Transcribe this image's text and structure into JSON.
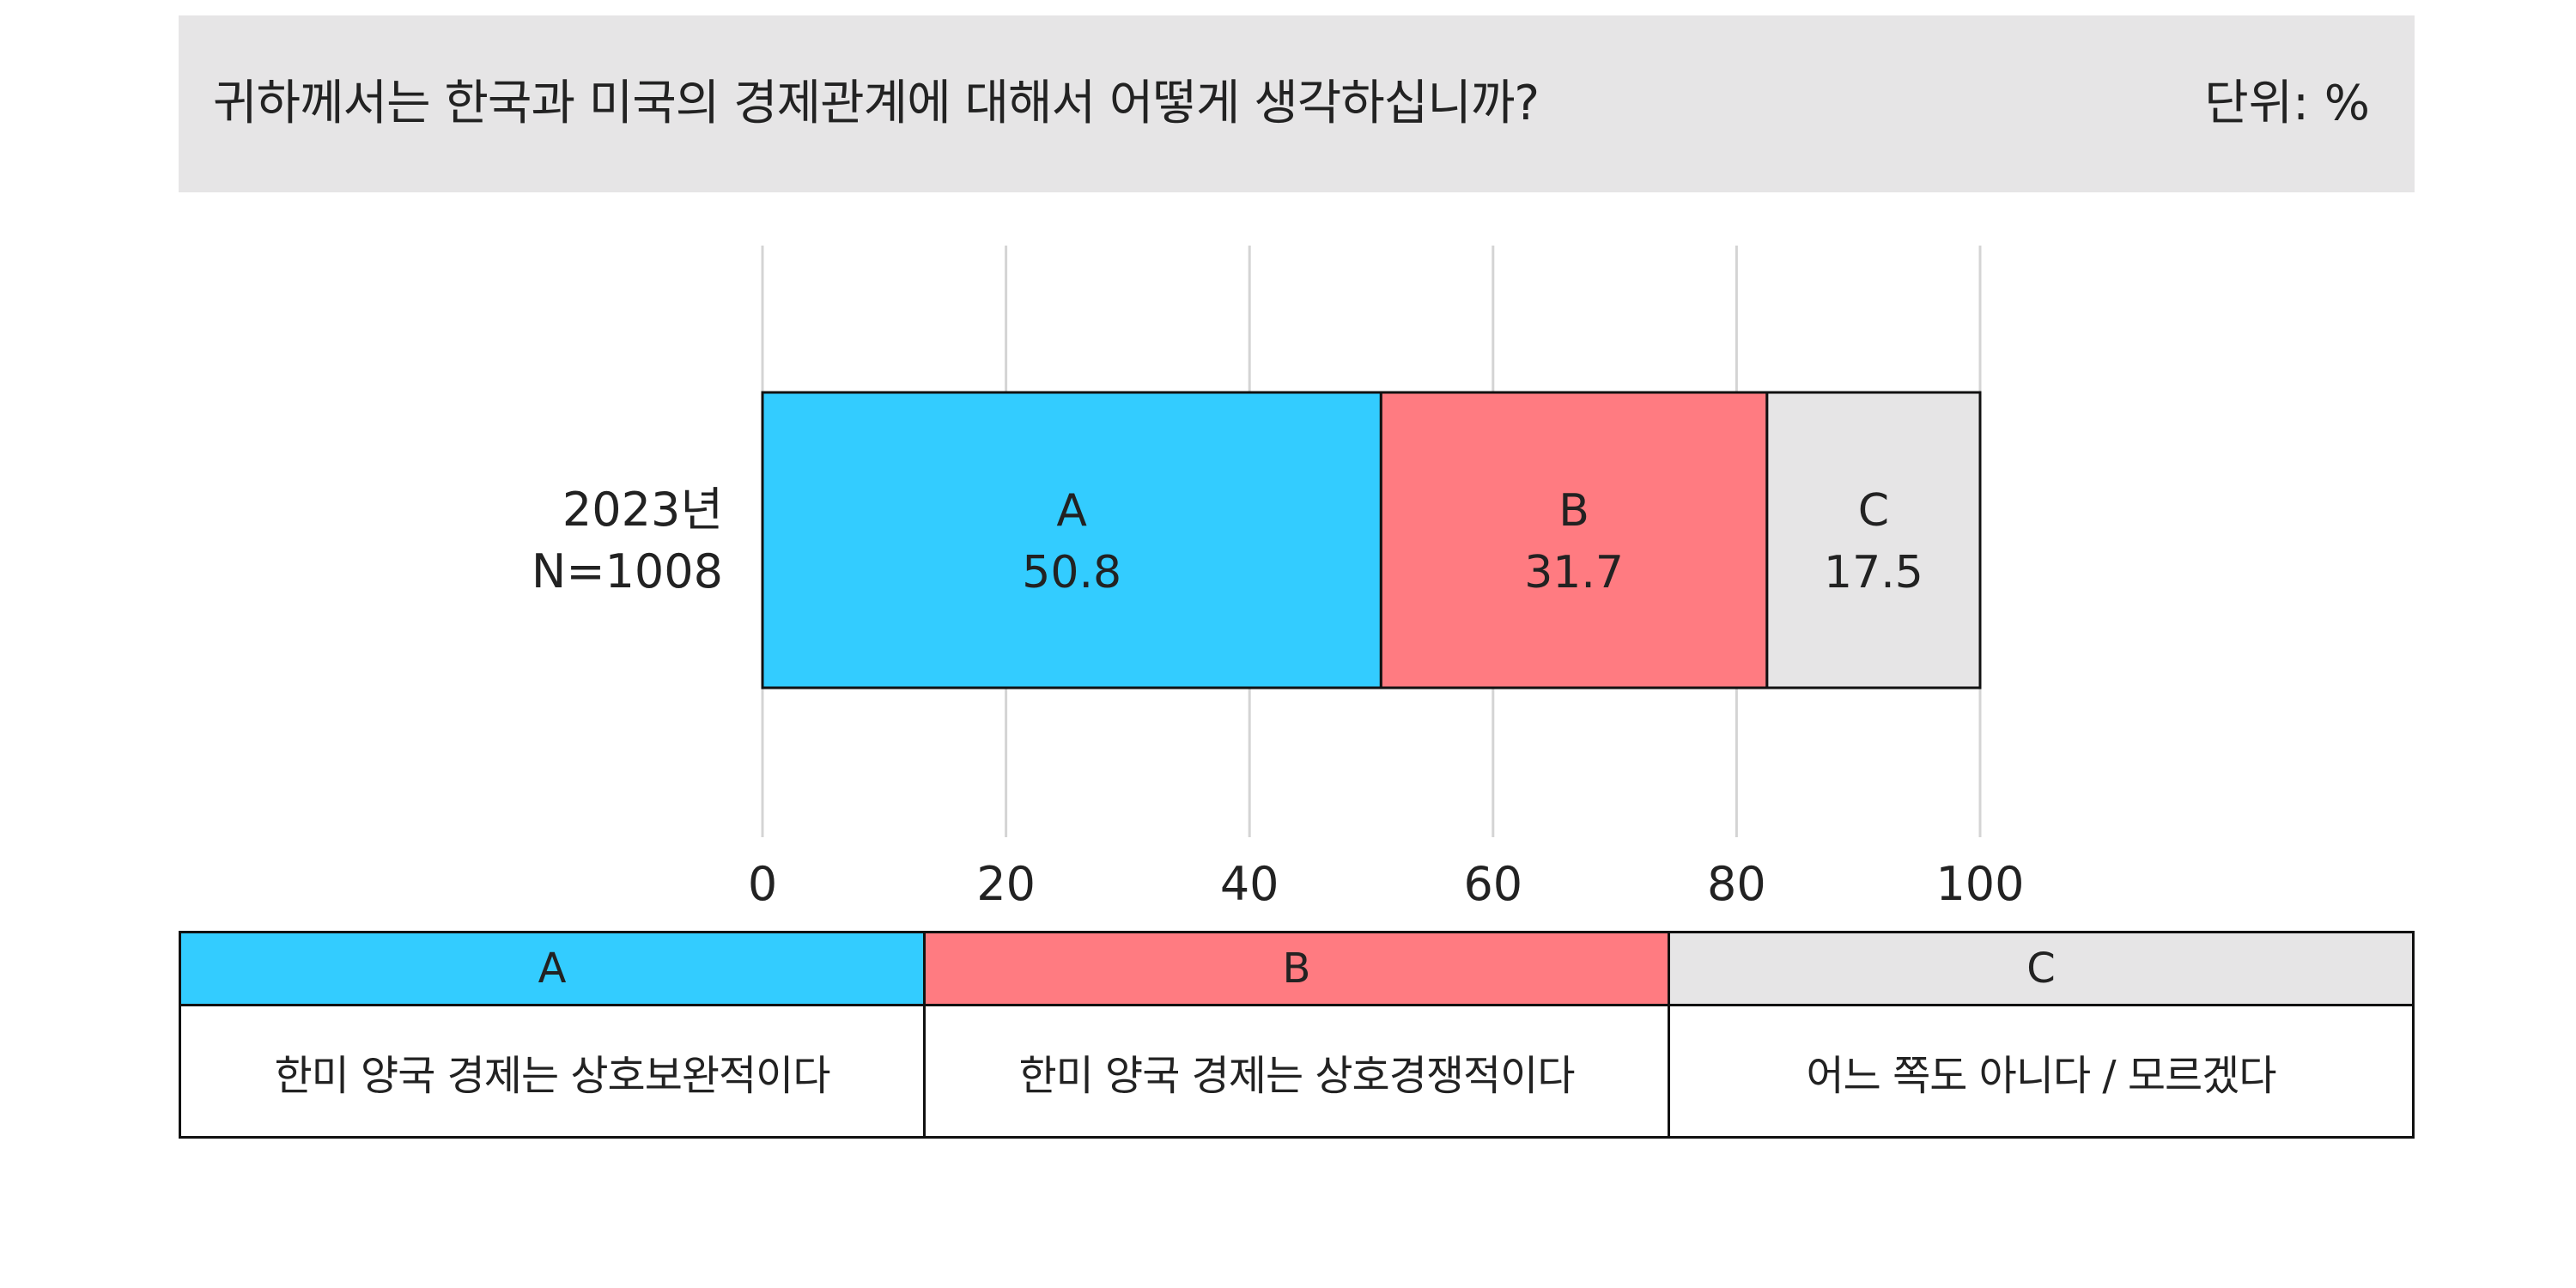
{
  "header": {
    "question": "귀하께서는 한국과 미국의 경제관계에 대해서 어떻게 생각하십니까?",
    "unit": "단위: %"
  },
  "chart_data": {
    "type": "bar",
    "orientation": "horizontal",
    "stacked": true,
    "categories": [
      "2023년 N=1008"
    ],
    "category_lines": [
      [
        "2023년",
        "N=1008"
      ]
    ],
    "series": [
      {
        "name": "A",
        "values": [
          50.8
        ],
        "color": "#33ccff"
      },
      {
        "name": "B",
        "values": [
          31.7
        ],
        "color": "#ff7b81"
      },
      {
        "name": "C",
        "values": [
          17.5
        ],
        "color": "#e6e5e6"
      }
    ],
    "xlim": [
      0,
      100
    ],
    "xticks": [
      0,
      20,
      40,
      60,
      80,
      100
    ],
    "grid": true
  },
  "legend": {
    "items": [
      {
        "key": "A",
        "label": "한미 양국 경제는 상호보완적이다",
        "color": "#33ccff"
      },
      {
        "key": "B",
        "label": "한미 양국 경제는 상호경쟁적이다",
        "color": "#ff7b81"
      },
      {
        "key": "C",
        "label": "어느 쪽도 아니다 / 모르겠다",
        "color": "#e6e5e6"
      }
    ]
  }
}
